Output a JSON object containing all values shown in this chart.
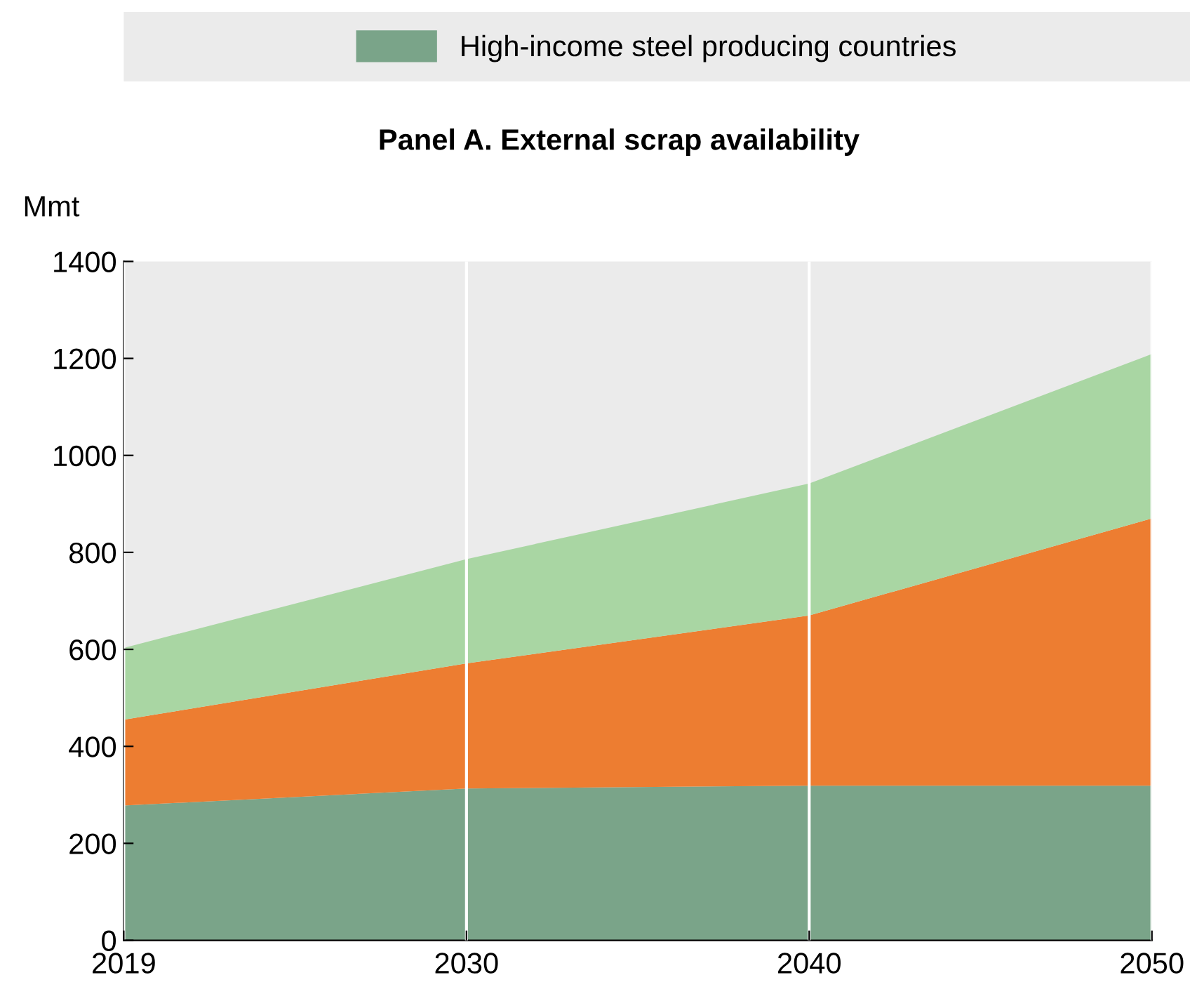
{
  "chart_data": {
    "type": "area",
    "title": "Panel A. External scrap availability",
    "ylabel": "Mmt",
    "categories": [
      "2019",
      "2030",
      "2040",
      "2050"
    ],
    "stacked": true,
    "series": [
      {
        "name": "High-income steel producing countries",
        "color": "#7aa489",
        "values": [
          278,
          313,
          319,
          319
        ]
      },
      {
        "color": "#ed7d31",
        "values": [
          177,
          258,
          351,
          551
        ]
      },
      {
        "color": "#a9d6a3",
        "values": [
          148,
          215,
          272,
          339
        ]
      }
    ],
    "ylim": [
      0,
      1400
    ],
    "yticks": [
      0,
      200,
      400,
      600,
      800,
      1000,
      1200,
      1400
    ],
    "grid": "x",
    "legend": "top"
  }
}
